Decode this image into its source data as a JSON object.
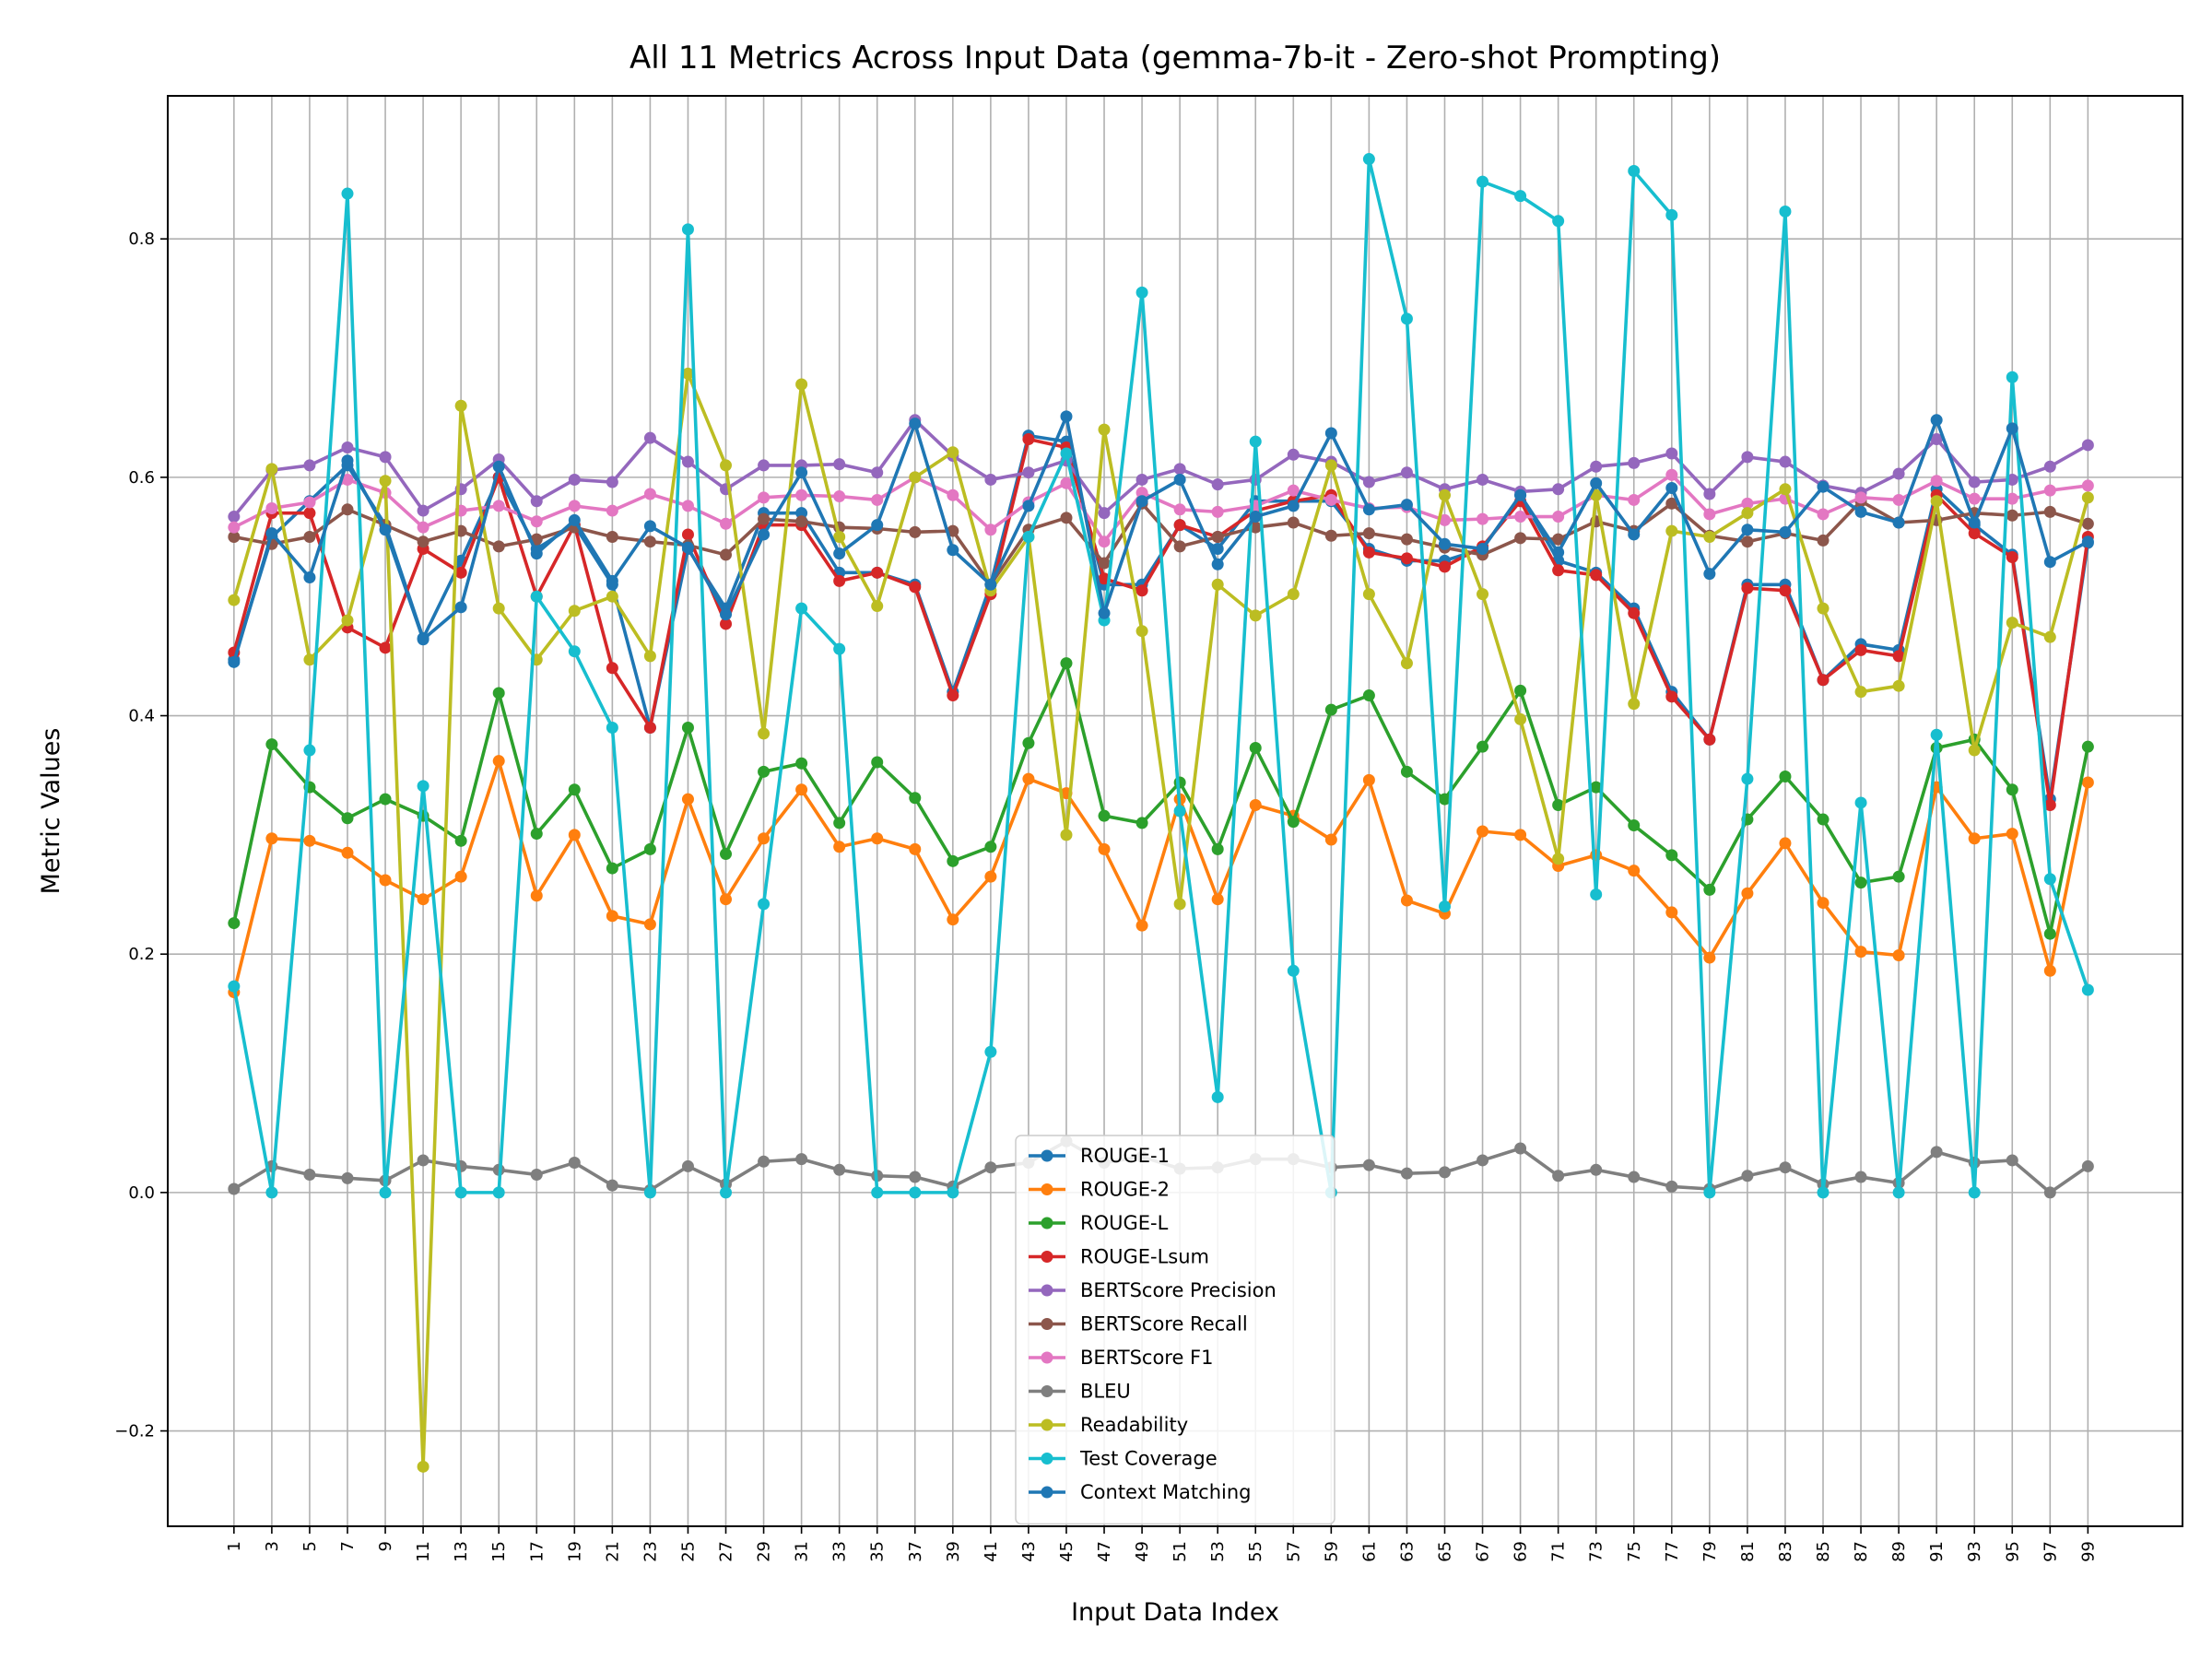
{
  "chart_data": {
    "type": "line",
    "title": "All 11 Metrics Across Input Data (gemma-7b-it - Zero-shot Prompting)",
    "xlabel": "Input Data Index",
    "ylabel": "Metric Values",
    "xlim": [
      -2.5,
      104.0
    ],
    "ylim": [
      -0.28,
      0.92
    ],
    "yticks": [
      -0.2,
      0.0,
      0.2,
      0.4,
      0.6,
      0.8
    ],
    "ytick_labels": [
      "−0.2",
      "0.0",
      "0.2",
      "0.4",
      "0.6",
      "0.8"
    ],
    "xticks": [
      1,
      3,
      5,
      7,
      9,
      11,
      13,
      15,
      17,
      19,
      21,
      23,
      25,
      27,
      29,
      31,
      33,
      35,
      37,
      39,
      41,
      43,
      45,
      47,
      49,
      51,
      53,
      55,
      57,
      59,
      61,
      63,
      65,
      67,
      69,
      71,
      73,
      75,
      77,
      79,
      81,
      83,
      85,
      87,
      89,
      91,
      93,
      95,
      97,
      99
    ],
    "grid": true,
    "legend_position": "lower-center",
    "x": [
      1,
      3,
      5,
      7,
      9,
      11,
      13,
      15,
      17,
      19,
      21,
      23,
      25,
      27,
      29,
      31,
      33,
      35,
      37,
      39,
      41,
      43,
      45,
      47,
      49,
      51,
      53,
      55,
      57,
      59,
      61,
      63,
      65,
      67,
      69,
      71,
      73,
      75,
      77,
      79,
      81,
      83,
      85,
      87,
      89,
      91,
      93,
      95,
      97,
      99
    ],
    "series": [
      {
        "name": "ROUGE-1",
        "color": "#1f77b4",
        "values": [
          0.447,
          0.55,
          0.58,
          0.61,
          0.56,
          0.465,
          0.53,
          0.6,
          0.54,
          0.56,
          0.51,
          0.39,
          0.54,
          0.49,
          0.57,
          0.57,
          0.52,
          0.52,
          0.51,
          0.42,
          0.51,
          0.635,
          0.63,
          0.51,
          0.51,
          0.56,
          0.54,
          0.58,
          0.58,
          0.58,
          0.54,
          0.53,
          0.53,
          0.54,
          0.585,
          0.53,
          0.52,
          0.49,
          0.42,
          0.38,
          0.51,
          0.51,
          0.43,
          0.46,
          0.455,
          0.59,
          0.56,
          0.535,
          0.33,
          0.545
        ]
      },
      {
        "name": "ROUGE-2",
        "color": "#ff7f0e",
        "values": [
          0.168,
          0.297,
          0.295,
          0.285,
          0.262,
          0.246,
          0.265,
          0.362,
          0.249,
          0.3,
          0.232,
          0.225,
          0.33,
          0.246,
          0.297,
          0.338,
          0.29,
          0.297,
          0.288,
          0.229,
          0.265,
          0.347,
          0.335,
          0.288,
          0.224,
          0.33,
          0.246,
          0.325,
          0.316,
          0.296,
          0.346,
          0.245,
          0.234,
          0.303,
          0.3,
          0.274,
          0.283,
          0.27,
          0.235,
          0.197,
          0.251,
          0.293,
          0.243,
          0.202,
          0.199,
          0.34,
          0.297,
          0.301,
          0.186,
          0.344
        ]
      },
      {
        "name": "ROUGE-L",
        "color": "#2ca02c",
        "values": [
          0.226,
          0.376,
          0.34,
          0.314,
          0.33,
          0.316,
          0.295,
          0.419,
          0.301,
          0.338,
          0.272,
          0.288,
          0.39,
          0.284,
          0.353,
          0.36,
          0.31,
          0.361,
          0.331,
          0.278,
          0.29,
          0.377,
          0.444,
          0.316,
          0.31,
          0.344,
          0.288,
          0.373,
          0.311,
          0.405,
          0.417,
          0.353,
          0.33,
          0.374,
          0.421,
          0.325,
          0.34,
          0.308,
          0.283,
          0.254,
          0.313,
          0.349,
          0.313,
          0.26,
          0.265,
          0.373,
          0.38,
          0.338,
          0.217,
          0.374
        ]
      },
      {
        "name": "ROUGE-Lsum",
        "color": "#d62728",
        "values": [
          0.453,
          0.57,
          0.57,
          0.474,
          0.457,
          0.54,
          0.52,
          0.6,
          0.5,
          0.56,
          0.44,
          0.39,
          0.552,
          0.477,
          0.56,
          0.56,
          0.513,
          0.52,
          0.508,
          0.417,
          0.502,
          0.632,
          0.625,
          0.515,
          0.505,
          0.56,
          0.55,
          0.572,
          0.58,
          0.585,
          0.537,
          0.532,
          0.525,
          0.542,
          0.58,
          0.522,
          0.518,
          0.486,
          0.416,
          0.38,
          0.507,
          0.505,
          0.43,
          0.455,
          0.45,
          0.585,
          0.553,
          0.533,
          0.325,
          0.55
        ]
      },
      {
        "name": "BERTScore Precision",
        "color": "#9467bd",
        "values": [
          0.567,
          0.606,
          0.61,
          0.625,
          0.617,
          0.572,
          0.59,
          0.615,
          0.58,
          0.598,
          0.596,
          0.633,
          0.613,
          0.59,
          0.61,
          0.61,
          0.611,
          0.604,
          0.648,
          0.618,
          0.598,
          0.604,
          0.614,
          0.57,
          0.598,
          0.607,
          0.594,
          0.598,
          0.619,
          0.613,
          0.596,
          0.604,
          0.59,
          0.598,
          0.588,
          0.59,
          0.609,
          0.612,
          0.62,
          0.586,
          0.617,
          0.613,
          0.593,
          0.587,
          0.603,
          0.632,
          0.596,
          0.598,
          0.609,
          0.627
        ]
      },
      {
        "name": "BERTScore Recall",
        "color": "#8c564b",
        "values": [
          0.55,
          0.544,
          0.55,
          0.573,
          0.56,
          0.546,
          0.555,
          0.542,
          0.548,
          0.558,
          0.55,
          0.546,
          0.543,
          0.535,
          0.565,
          0.563,
          0.558,
          0.557,
          0.554,
          0.555,
          0.51,
          0.556,
          0.566,
          0.528,
          0.578,
          0.542,
          0.55,
          0.558,
          0.562,
          0.551,
          0.553,
          0.548,
          0.541,
          0.535,
          0.549,
          0.548,
          0.563,
          0.555,
          0.578,
          0.551,
          0.546,
          0.553,
          0.547,
          0.58,
          0.562,
          0.564,
          0.57,
          0.568,
          0.571,
          0.561
        ]
      },
      {
        "name": "BERTScore F1",
        "color": "#e377c2",
        "values": [
          0.558,
          0.574,
          0.579,
          0.598,
          0.587,
          0.558,
          0.572,
          0.576,
          0.563,
          0.576,
          0.572,
          0.586,
          0.576,
          0.561,
          0.583,
          0.585,
          0.584,
          0.581,
          0.6,
          0.585,
          0.556,
          0.579,
          0.595,
          0.546,
          0.587,
          0.573,
          0.571,
          0.576,
          0.589,
          0.581,
          0.574,
          0.575,
          0.564,
          0.565,
          0.567,
          0.567,
          0.585,
          0.581,
          0.602,
          0.569,
          0.578,
          0.582,
          0.569,
          0.583,
          0.581,
          0.597,
          0.582,
          0.582,
          0.589,
          0.593
        ]
      },
      {
        "name": "BLEU",
        "color": "#7f7f7f",
        "values": [
          0.003,
          0.022,
          0.015,
          0.012,
          0.01,
          0.027,
          0.022,
          0.019,
          0.015,
          0.025,
          0.006,
          0.002,
          0.022,
          0.007,
          0.026,
          0.028,
          0.019,
          0.014,
          0.013,
          0.005,
          0.021,
          0.025,
          0.043,
          0.025,
          0.03,
          0.02,
          0.021,
          0.028,
          0.028,
          0.021,
          0.023,
          0.016,
          0.017,
          0.027,
          0.037,
          0.014,
          0.019,
          0.013,
          0.005,
          0.003,
          0.014,
          0.021,
          0.007,
          0.013,
          0.008,
          0.034,
          0.025,
          0.027,
          0.0,
          0.022
        ]
      },
      {
        "name": "Readability",
        "color": "#bcbd22",
        "values": [
          0.497,
          0.607,
          0.447,
          0.48,
          0.597,
          -0.23,
          0.66,
          0.49,
          0.447,
          0.488,
          0.5,
          0.45,
          0.687,
          0.61,
          0.385,
          0.678,
          0.55,
          0.492,
          0.6,
          0.621,
          0.505,
          0.55,
          0.3,
          0.64,
          0.471,
          0.242,
          0.51,
          0.484,
          0.502,
          0.61,
          0.502,
          0.444,
          0.585,
          0.502,
          0.397,
          0.28,
          0.585,
          0.41,
          0.555,
          0.55,
          0.57,
          0.59,
          0.49,
          0.42,
          0.425,
          0.58,
          0.371,
          0.478,
          0.466,
          0.583
        ]
      },
      {
        "name": "Test Coverage",
        "color": "#17becf",
        "values": [
          0.173,
          0.0,
          0.371,
          0.838,
          0.0,
          0.341,
          0.0,
          0.0,
          0.5,
          0.454,
          0.39,
          0.0,
          0.808,
          0.0,
          0.242,
          0.49,
          0.456,
          0.0,
          0.0,
          0.0,
          0.118,
          0.55,
          0.62,
          0.48,
          0.755,
          0.32,
          0.08,
          0.63,
          0.186,
          0.0,
          0.867,
          0.733,
          0.24,
          0.848,
          0.836,
          0.815,
          0.25,
          0.857,
          0.82,
          0.0,
          0.347,
          0.823,
          0.0,
          0.327,
          0.0,
          0.384,
          0.0,
          0.684,
          0.263,
          0.17
        ]
      },
      {
        "name": "Context Matching",
        "color": "#1f77b4",
        "values": [
          0.445,
          0.553,
          0.516,
          0.614,
          0.556,
          0.464,
          0.491,
          0.609,
          0.536,
          0.564,
          0.513,
          0.559,
          0.541,
          0.485,
          0.552,
          0.604,
          0.536,
          0.56,
          0.645,
          0.539,
          0.51,
          0.576,
          0.651,
          0.486,
          0.58,
          0.598,
          0.527,
          0.567,
          0.576,
          0.637,
          0.573,
          0.577,
          0.544,
          0.54,
          0.585,
          0.537,
          0.595,
          0.552,
          0.591,
          0.519,
          0.556,
          0.554,
          0.592,
          0.571,
          0.562,
          0.648,
          0.562,
          0.641,
          0.529,
          0.546
        ]
      }
    ]
  }
}
